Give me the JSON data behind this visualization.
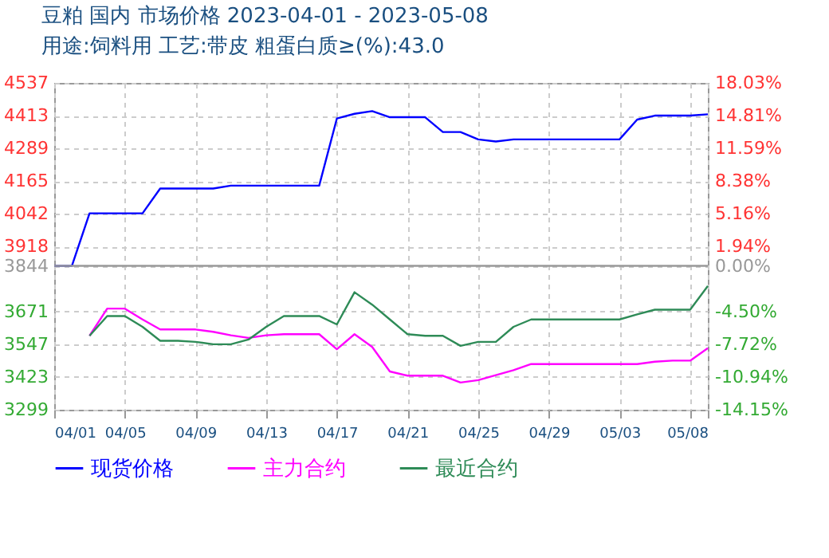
{
  "chart_data": {
    "type": "line",
    "title": "豆粕 国内 市场价格 2023-04-01 - 2023-05-08",
    "subtitle": "用途:饲料用 工艺:带皮 粗蛋白质≥(%):43.0",
    "x": [
      "2023-04-01",
      "2023-04-02",
      "2023-04-03",
      "2023-04-04",
      "2023-04-05",
      "2023-04-06",
      "2023-04-07",
      "2023-04-08",
      "2023-04-09",
      "2023-04-10",
      "2023-04-11",
      "2023-04-12",
      "2023-04-13",
      "2023-04-14",
      "2023-04-15",
      "2023-04-16",
      "2023-04-17",
      "2023-04-18",
      "2023-04-19",
      "2023-04-20",
      "2023-04-21",
      "2023-04-22",
      "2023-04-23",
      "2023-04-24",
      "2023-04-25",
      "2023-04-26",
      "2023-04-27",
      "2023-04-28",
      "2023-04-29",
      "2023-04-30",
      "2023-05-01",
      "2023-05-02",
      "2023-05-03",
      "2023-05-04",
      "2023-05-05",
      "2023-05-06",
      "2023-05-07",
      "2023-05-08"
    ],
    "series": [
      {
        "name": "现货价格",
        "color": "#0000ff",
        "values": [
          3844,
          3844,
          4043,
          4043,
          4043,
          4043,
          4137,
          4137,
          4137,
          4137,
          4148,
          4148,
          4148,
          4148,
          4148,
          4148,
          4402,
          4420,
          4430,
          4407,
          4407,
          4407,
          4351,
          4351,
          4323,
          4315,
          4323,
          4323,
          4323,
          4323,
          4323,
          4323,
          4323,
          4398,
          4413,
          4413,
          4413,
          4418
        ]
      },
      {
        "name": "主力合约",
        "color": "#ff00ff",
        "values": [
          null,
          null,
          3579,
          3682,
          3682,
          3641,
          3603,
          3603,
          3603,
          3594,
          3581,
          3571,
          3581,
          3585,
          3585,
          3585,
          3528,
          3585,
          3537,
          3444,
          3428,
          3428,
          3428,
          3402,
          3411,
          3430,
          3449,
          3472,
          3472,
          3472,
          3472,
          3472,
          3472,
          3472,
          3481,
          3485,
          3485,
          3532
        ]
      },
      {
        "name": "最近合约",
        "color": "#2e8b57",
        "values": [
          null,
          null,
          3579,
          3654,
          3654,
          3613,
          3560,
          3560,
          3556,
          3547,
          3547,
          3565,
          3613,
          3654,
          3654,
          3654,
          3622,
          3744,
          3697,
          3641,
          3585,
          3579,
          3579,
          3541,
          3556,
          3556,
          3613,
          3641,
          3641,
          3641,
          3641,
          3641,
          3641,
          3660,
          3678,
          3678,
          3678,
          3768
        ]
      }
    ],
    "xlim": [
      "2023-04-01",
      "2023-05-08"
    ],
    "xticks": [
      {
        "value": "2023-04-01",
        "label": "04/01"
      },
      {
        "value": "2023-04-05",
        "label": "04/05"
      },
      {
        "value": "2023-04-09",
        "label": "04/09"
      },
      {
        "value": "2023-04-13",
        "label": "04/13"
      },
      {
        "value": "2023-04-17",
        "label": "04/17"
      },
      {
        "value": "2023-04-21",
        "label": "04/21"
      },
      {
        "value": "2023-04-25",
        "label": "04/25"
      },
      {
        "value": "2023-04-29",
        "label": "04/29"
      },
      {
        "value": "2023-05-03",
        "label": "05/03"
      },
      {
        "value": "2023-05-07",
        "label": null
      },
      {
        "value": "2023-05-08",
        "label": "05/08"
      }
    ],
    "ylim": [
      3299,
      4537
    ],
    "yticks": [
      3299,
      3423,
      3547,
      3671,
      3844,
      3918,
      4042,
      4165,
      4289,
      4413,
      4537
    ],
    "y2lim": [
      -14.15,
      18.03
    ],
    "y2ticks": [
      {
        "value": -14.15,
        "label": "-14.15%"
      },
      {
        "value": -10.94,
        "label": "-10.94%"
      },
      {
        "value": -7.72,
        "label": "-7.72%"
      },
      {
        "value": -4.5,
        "label": "-4.50%"
      },
      {
        "value": 0,
        "label": "0.00%"
      },
      {
        "value": 1.94,
        "label": "1.94%"
      },
      {
        "value": 5.16,
        "label": "5.16%"
      },
      {
        "value": 8.38,
        "label": "8.38%"
      },
      {
        "value": 11.59,
        "label": "11.59%"
      },
      {
        "value": 14.81,
        "label": "14.81%"
      },
      {
        "value": 18.03,
        "label": "18.03%"
      }
    ],
    "ref_lines": [
      {
        "axis": "y",
        "value": 3844,
        "color": "#999999"
      }
    ],
    "grid": true,
    "legend": "bottom",
    "marker": "none",
    "line_style": "solid"
  }
}
